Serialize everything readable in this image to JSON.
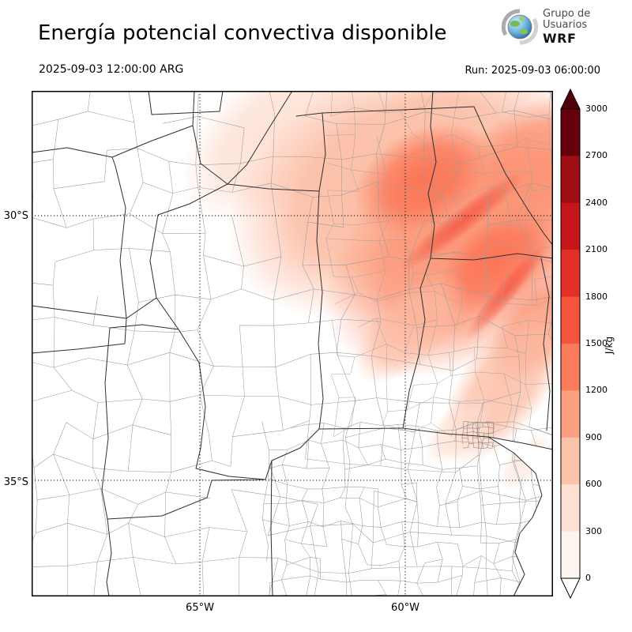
{
  "header": {
    "title": "Energía potencial convectiva disponible",
    "valid_time": "2025-09-03 12:00:00 ARG",
    "run_label": "Run: 2025-09-03 06:00:00",
    "logo": {
      "line1": "Grupo de",
      "line2": "Usuarios",
      "line3": "WRF"
    }
  },
  "chart_data": {
    "type": "heatmap",
    "title": "Energía potencial convectiva disponible",
    "variable": "CAPE (convective available potential energy)",
    "units": "J/kg",
    "valid_time": "2025-09-03 12:00:00 ARG",
    "model_run": "2025-09-03 06:00:00",
    "axes": {
      "lat_tick_labels": [
        "30°S",
        "35°S"
      ],
      "lon_tick_labels": [
        "65°W",
        "60°W"
      ],
      "grid": "dotted graticule at labeled ticks"
    },
    "colorbar": {
      "label": "J/kg",
      "min": 0,
      "max": 3000,
      "interval": 300,
      "tick_labels_top_to_bottom": [
        "3000",
        "2700",
        "2400",
        "2100",
        "1800",
        "1500",
        "1200",
        "900",
        "600",
        "300",
        "0"
      ],
      "segment_colors_top_to_bottom": [
        "#67000d",
        "#9f0e14",
        "#c5161b",
        "#e32f27",
        "#f5553d",
        "#fb7c5c",
        "#fca082",
        "#fcc3ab",
        "#fee1d4",
        "#fff5f0"
      ],
      "over_arrow_color": "#4f0009",
      "under_arrow_color": "#ffffff",
      "outline_color": "#000000",
      "position": "right"
    },
    "field_summary": {
      "pattern": "band of moderate CAPE oriented NW-SE over the northeastern part of the domain; near-zero CAPE over the center, west and south",
      "max_region": "northeast (Santiago del Estero / Chaco / Santa Fe / Corrientes)",
      "approx_max_value": 1500,
      "min_value": 0
    }
  }
}
